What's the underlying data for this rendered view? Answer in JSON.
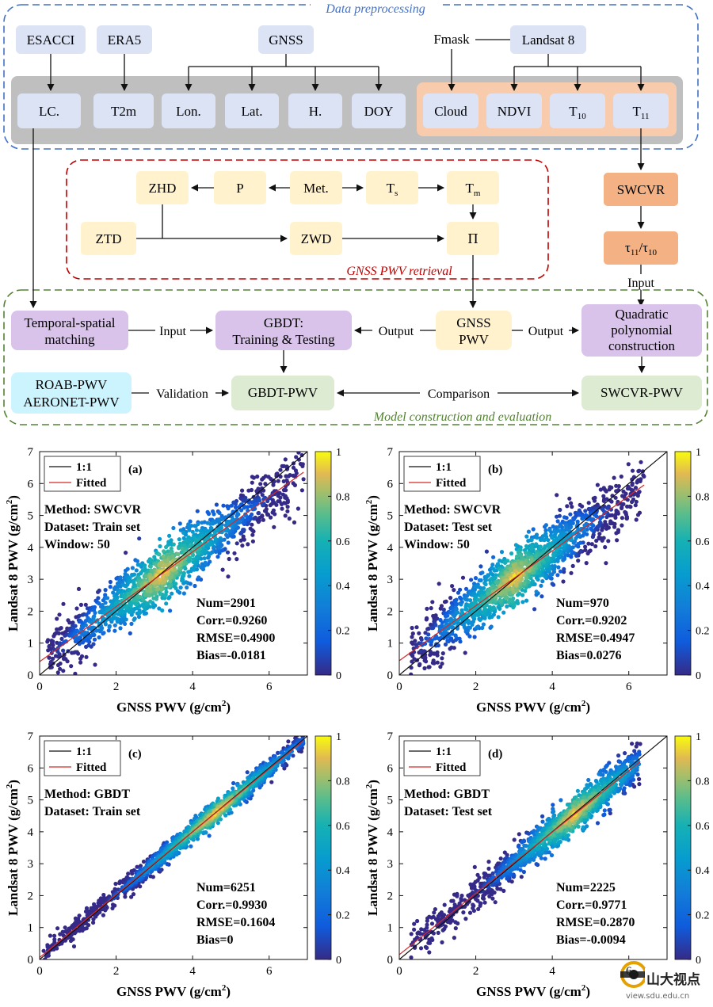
{
  "flowchart": {
    "sections": {
      "preprocessing": "Data preprocessing",
      "retrieval": "GNSS PWV retrieval",
      "model": "Model construction and evaluation"
    },
    "sources": {
      "esacci": "ESACCI",
      "era5": "ERA5",
      "gnss": "GNSS",
      "fmask": "Fmask",
      "landsat8": "Landsat 8"
    },
    "features": {
      "lc": "LC.",
      "t2m": "T2m",
      "lon": "Lon.",
      "lat": "Lat.",
      "h": "H.",
      "doy": "DOY",
      "cloud": "Cloud",
      "ndvi": "NDVI",
      "t10": "T",
      "t10_sub": "10",
      "t11": "T",
      "t11_sub": "11"
    },
    "retrieval": {
      "zhd": "ZHD",
      "p": "P",
      "met": "Met.",
      "ts": "T",
      "ts_sub": "s",
      "tm": "T",
      "tm_sub": "m",
      "ztd": "ZTD",
      "zwd": "ZWD",
      "pi": "Π"
    },
    "swcvr": {
      "swcvr": "SWCVR",
      "ratio_a": "τ",
      "ratio_a_sub": "11",
      "ratio_sep": "/τ",
      "ratio_b_sub": "10",
      "input_label": "Input"
    },
    "model": {
      "matching_line1": "Temporal-spatial",
      "matching_line2": "matching",
      "input_label": "Input",
      "gbdt_line1": "GBDT:",
      "gbdt_line2": "Training & Testing",
      "output_label_left": "Output",
      "gnss_pwv_line1": "GNSS",
      "gnss_pwv_line2": "PWV",
      "output_label_right": "Output",
      "quad_line1": "Quadratic",
      "quad_line2": "polynomial",
      "quad_line3": "construction",
      "roab_line1": "ROAB-PWV",
      "roab_line2": "AERONET-PWV",
      "validation_label": "Validation",
      "gbdt_pwv": "GBDT-PWV",
      "comparison_label": "Comparison",
      "swcvr_pwv": "SWCVR-PWV"
    }
  },
  "chart_data": [
    {
      "type": "scatter",
      "panel": "(a)",
      "xlabel": "GNSS PWV (g/cm",
      "xlabel_sup": "2",
      "xlabel_end": ")",
      "ylabel": "Landsat 8 PWV (g/cm",
      "ylabel_sup": "2",
      "ylabel_end": ")",
      "xlim": [
        0,
        7
      ],
      "ylim": [
        0,
        7
      ],
      "xticks": [
        "0",
        "2",
        "4",
        "6"
      ],
      "yticks": [
        "0",
        "1",
        "2",
        "3",
        "4",
        "5",
        "6",
        "7"
      ],
      "legend": [
        "1:1",
        "Fitted"
      ],
      "info": [
        "Method: SWCVR",
        "Dataset: Train set",
        "Window: 50"
      ],
      "stats": [
        "Num=2901",
        "Corr.=0.9260",
        "RMSE=0.4900",
        "Bias=-0.0181"
      ],
      "fit": {
        "slope": 0.86,
        "intercept": 0.42
      },
      "spread": 0.45,
      "xrange": [
        0.2,
        6.9
      ],
      "center": 3.2,
      "colorbar_ticks": [
        "0",
        "0.2",
        "0.4",
        "0.6",
        "0.8",
        "1"
      ]
    },
    {
      "type": "scatter",
      "panel": "(b)",
      "xlabel": "GNSS PWV (g/cm",
      "xlabel_sup": "2",
      "xlabel_end": ")",
      "ylabel": "Landsat 8 PWV (g/cm",
      "ylabel_sup": "2",
      "ylabel_end": ")",
      "xlim": [
        0,
        7
      ],
      "ylim": [
        0,
        7
      ],
      "xticks": [
        "0",
        "2",
        "4",
        "6"
      ],
      "yticks": [
        "0",
        "1",
        "2",
        "3",
        "4",
        "5",
        "6",
        "7"
      ],
      "legend": [
        "1:1",
        "Fitted"
      ],
      "info": [
        "Method: SWCVR",
        "Dataset: Test set",
        "Window: 50"
      ],
      "stats": [
        "Num=970",
        "Corr.=0.9202",
        "RMSE=0.4947",
        "Bias=0.0276"
      ],
      "fit": {
        "slope": 0.86,
        "intercept": 0.45
      },
      "spread": 0.45,
      "xrange": [
        0.3,
        6.4
      ],
      "center": 3.0,
      "colorbar_ticks": [
        "0",
        "0.2",
        "0.4",
        "0.6",
        "0.8",
        "1"
      ]
    },
    {
      "type": "scatter",
      "panel": "(c)",
      "xlabel": "GNSS PWV (g/cm",
      "xlabel_sup": "2",
      "xlabel_end": ")",
      "ylabel": "Landsat 8 PWV (g/cm",
      "ylabel_sup": "2",
      "ylabel_end": ")",
      "xlim": [
        0,
        7
      ],
      "ylim": [
        0,
        7
      ],
      "xticks": [
        "0",
        "2",
        "4",
        "6"
      ],
      "yticks": [
        "0",
        "1",
        "2",
        "3",
        "4",
        "5",
        "6",
        "7"
      ],
      "legend": [
        "1:1",
        "Fitted"
      ],
      "info": [
        "Method: GBDT",
        "Dataset: Train set"
      ],
      "stats": [
        "Num=6251",
        "Corr.=0.9930",
        "RMSE=0.1604",
        "Bias=0"
      ],
      "fit": {
        "slope": 0.985,
        "intercept": 0.06
      },
      "spread": 0.16,
      "xrange": [
        0.1,
        6.9
      ],
      "center": 4.6,
      "colorbar_ticks": [
        "0",
        "0.2",
        "0.4",
        "0.6",
        "0.8",
        "1"
      ]
    },
    {
      "type": "scatter",
      "panel": "(d)",
      "xlabel": "GNSS PWV (g/cm",
      "xlabel_sup": "2",
      "xlabel_end": ")",
      "ylabel": "Landsat 8 PWV (g/cm",
      "ylabel_sup": "2",
      "ylabel_end": ")",
      "xlim": [
        0,
        7
      ],
      "ylim": [
        0,
        7
      ],
      "xticks": [
        "0",
        "2",
        "4",
        "6"
      ],
      "yticks": [
        "0",
        "1",
        "2",
        "3",
        "4",
        "5",
        "6",
        "7"
      ],
      "legend": [
        "1:1",
        "Fitted"
      ],
      "info": [
        "Method: GBDT",
        "Dataset: Test set"
      ],
      "stats": [
        "Num=2225",
        "Corr.=0.9771",
        "RMSE=0.2870",
        "Bias=-0.0094"
      ],
      "fit": {
        "slope": 0.96,
        "intercept": 0.15
      },
      "spread": 0.28,
      "xrange": [
        0.3,
        6.3
      ],
      "center": 4.6,
      "colorbar_ticks": [
        "0",
        "0.2",
        "0.4",
        "0.6",
        "0.8",
        "1"
      ]
    }
  ],
  "watermark": {
    "brand": "山大视点",
    "url": "view.sdu.edu.cn"
  },
  "colors": {
    "blue_box": "#dbe3f5",
    "gray_band": "#bfbfbf",
    "orange_band": "#f8cbad",
    "swcvr_box": "#f4b183",
    "yellow_box": "#fff2cc",
    "purple_box": "#d9c3ea",
    "green_box": "#dcebd2",
    "cyan_box": "#ccf4ff",
    "blue_dash": "#4472c4",
    "red_dash": "#c00000",
    "green_dash": "#548235"
  }
}
